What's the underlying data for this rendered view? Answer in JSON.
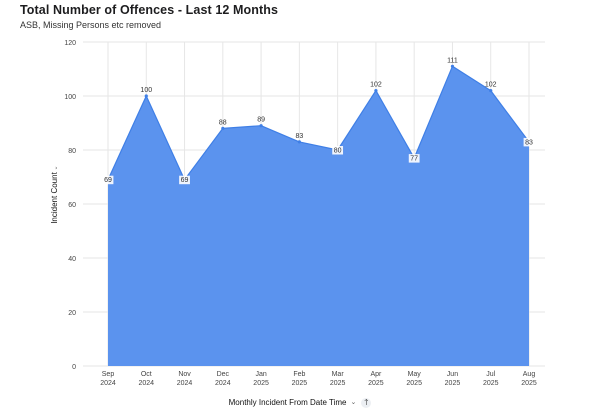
{
  "header": {
    "title": "Total Number of Offences - Last 12 Months",
    "subtitle": "ASB, Missing Persons etc removed"
  },
  "x_axis": {
    "title": "Monthly Incident From Date Time",
    "caret_icon": "chevron-down-icon",
    "sort_icon": "arrow-up-icon"
  },
  "y_axis": {
    "title": "Incident Count",
    "caret_icon": "chevron-down-icon"
  },
  "chart_data": {
    "type": "area",
    "title": "Total Number of Offences - Last 12 Months",
    "subtitle": "ASB, Missing Persons etc removed",
    "xlabel": "Monthly Incident From Date Time",
    "ylabel": "Incident Count",
    "categories": [
      [
        "Sep",
        "2024"
      ],
      [
        "Oct",
        "2024"
      ],
      [
        "Nov",
        "2024"
      ],
      [
        "Dec",
        "2024"
      ],
      [
        "Jan",
        "2025"
      ],
      [
        "Feb",
        "2025"
      ],
      [
        "Mar",
        "2025"
      ],
      [
        "Apr",
        "2025"
      ],
      [
        "May",
        "2025"
      ],
      [
        "Jun",
        "2025"
      ],
      [
        "Jul",
        "2025"
      ],
      [
        "Aug",
        "2025"
      ]
    ],
    "values": [
      69,
      100,
      69,
      88,
      89,
      83,
      80,
      102,
      77,
      111,
      102,
      83
    ],
    "ylim": [
      0,
      120
    ],
    "yticks": [
      0,
      20,
      40,
      60,
      80,
      100,
      120
    ],
    "grid": true,
    "fill_color": "#5b93ee",
    "line_color": "#3f7fe6",
    "grid_color": "#e6e6e6"
  }
}
